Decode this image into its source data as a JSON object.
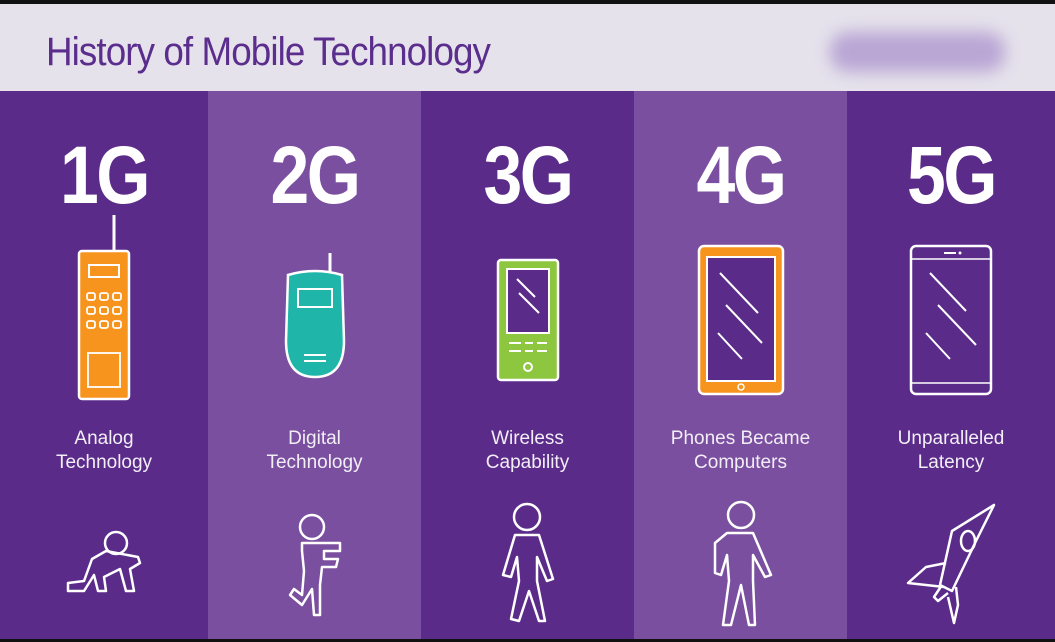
{
  "header": {
    "title": "History of Mobile Technology"
  },
  "colors": {
    "dark_purple": "#5b2b8a",
    "light_purple": "#7a4f9f",
    "orange": "#f7941d",
    "teal": "#1fb5a8",
    "green": "#8dc63f"
  },
  "generations": [
    {
      "label": "1G",
      "description_line1": "Analog",
      "description_line2": "Technology",
      "phone_icon": "brick-phone-icon",
      "figure_icon": "crawling-baby-icon"
    },
    {
      "label": "2G",
      "description_line1": "Digital",
      "description_line2": "Technology",
      "phone_icon": "flip-phone-icon",
      "figure_icon": "toddler-icon"
    },
    {
      "label": "3G",
      "description_line1": "Wireless",
      "description_line2": "Capability",
      "phone_icon": "feature-phone-icon",
      "figure_icon": "walking-person-icon"
    },
    {
      "label": "4G",
      "description_line1": "Phones Became",
      "description_line2": "Computers",
      "phone_icon": "smartphone-icon",
      "figure_icon": "standing-person-icon"
    },
    {
      "label": "5G",
      "description_line1": "Unparalleled",
      "description_line2": "Latency",
      "phone_icon": "modern-smartphone-icon",
      "figure_icon": "rocket-icon"
    }
  ]
}
